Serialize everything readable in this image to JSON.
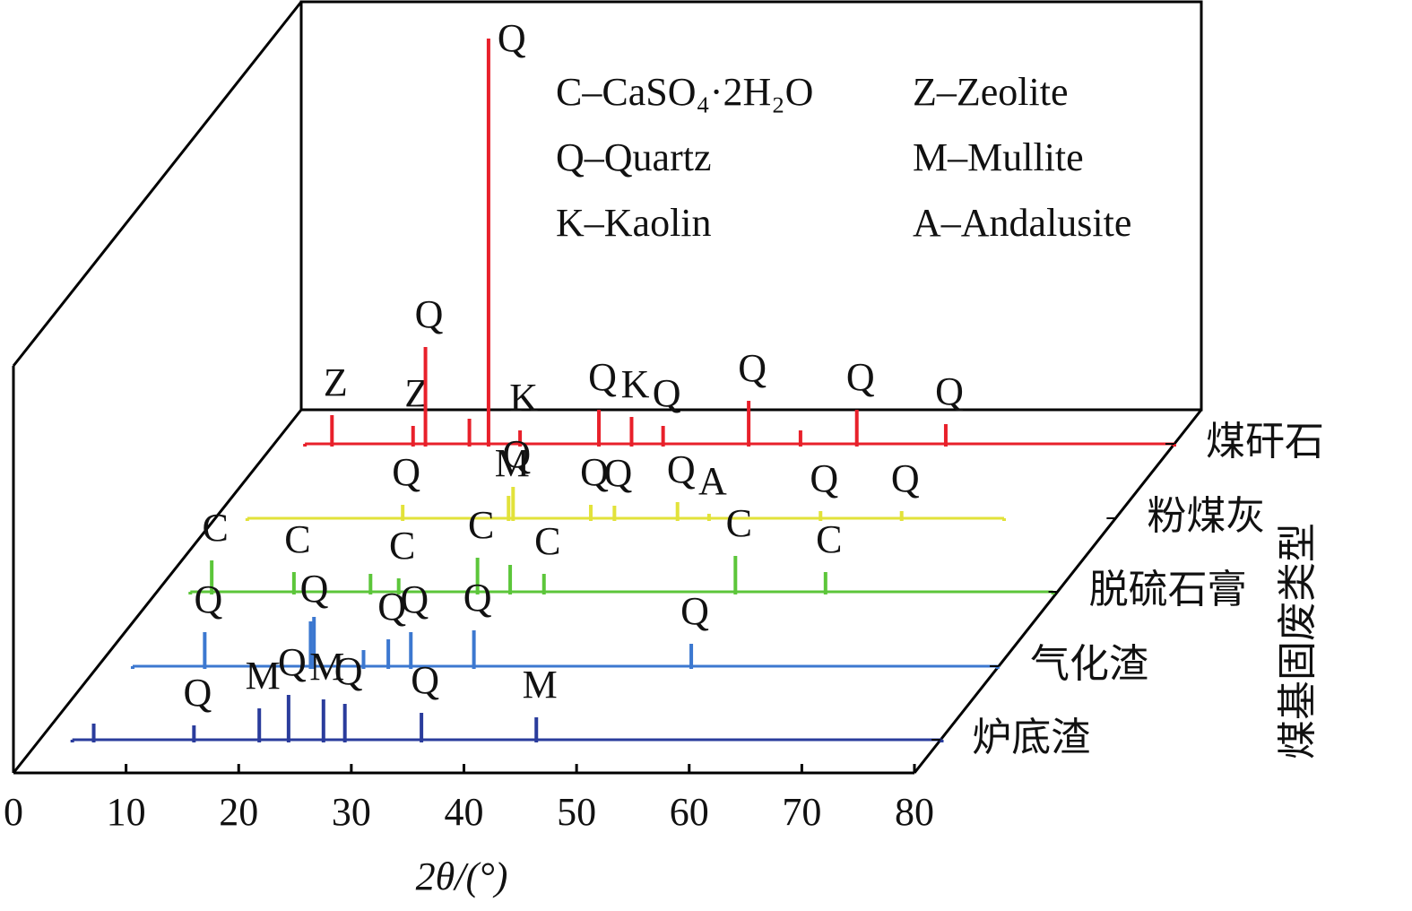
{
  "chart_data": {
    "type": "waterfall",
    "xlabel": "2θ/(°)",
    "zlabel": "煤基固废类型",
    "xlim": [
      0,
      80
    ],
    "xticks": [
      0,
      10,
      20,
      30,
      40,
      50,
      60,
      70,
      80
    ],
    "legend": [
      "C–CaSO₄·2H₂O",
      "Z–Zeolite",
      "Q–Quartz",
      "M–Mullite",
      "K–Kaolin",
      "A–Andalusite"
    ],
    "series": [
      {
        "name": "煤矸石",
        "color": "#e8202a",
        "x": [
          2.8,
          5.2,
          12.4,
          13.5,
          17.4,
          19.1,
          21.9,
          28.9,
          31.8,
          34.6,
          42.2,
          46.8,
          51.8,
          59.7,
          80
        ],
        "values": [
          0,
          32,
          20,
          108,
          28,
          452,
          15,
          38,
          30,
          20,
          48,
          15,
          38,
          22,
          0
        ],
        "labels": [
          null,
          "Z",
          "Z",
          "Q",
          null,
          "Q",
          "K",
          "Q",
          "K",
          "Q",
          "Q",
          null,
          "Q",
          "Q",
          null
        ]
      },
      {
        "name": "粉煤灰",
        "color": "#e2e23a",
        "x": [
          2.9,
          16.7,
          26.1,
          26.5,
          33.4,
          35.5,
          41.1,
          43.9,
          53.8,
          61.0,
          70.1
        ],
        "values": [
          0,
          15,
          25,
          35,
          15,
          14,
          18,
          5,
          8,
          8,
          0
        ],
        "labels": [
          null,
          "Q",
          "M",
          "Q",
          "Q",
          "Q",
          "Q",
          "A",
          "Q",
          "Q",
          null
        ]
      },
      {
        "name": "脱硫石膏",
        "color": "#5cc63a",
        "x": [
          3.0,
          4.9,
          12.2,
          19.0,
          21.5,
          28.5,
          31.4,
          34.4,
          51.4,
          59.4,
          79.6
        ],
        "values": [
          0,
          35,
          22,
          20,
          15,
          38,
          30,
          20,
          40,
          22,
          0
        ],
        "labels": [
          null,
          "C",
          "C",
          null,
          "C",
          "C",
          null,
          "C",
          "C",
          "C",
          null
        ]
      },
      {
        "name": "气化渣",
        "color": "#3c78d0",
        "x": [
          3.1,
          9.5,
          18.9,
          19.2,
          23.6,
          25.8,
          27.8,
          33.4,
          52.7,
          79.9
        ],
        "values": [
          0,
          38,
          50,
          55,
          18,
          30,
          38,
          40,
          25,
          0
        ],
        "labels": [
          null,
          "Q",
          "Q",
          null,
          null,
          "Q",
          "Q",
          "Q",
          "Q",
          null
        ]
      },
      {
        "name": "炉底渣",
        "color": "#2a3c9c",
        "x": [
          2.9,
          4.8,
          13.7,
          19.5,
          22.1,
          25.2,
          27.1,
          33.9,
          44.1,
          80.1
        ],
        "values": [
          0,
          18,
          16,
          35,
          50,
          45,
          40,
          30,
          25,
          0
        ],
        "labels": [
          null,
          null,
          "Q",
          "M",
          "Q",
          "M",
          "Q",
          "Q",
          "M",
          null
        ]
      }
    ]
  }
}
